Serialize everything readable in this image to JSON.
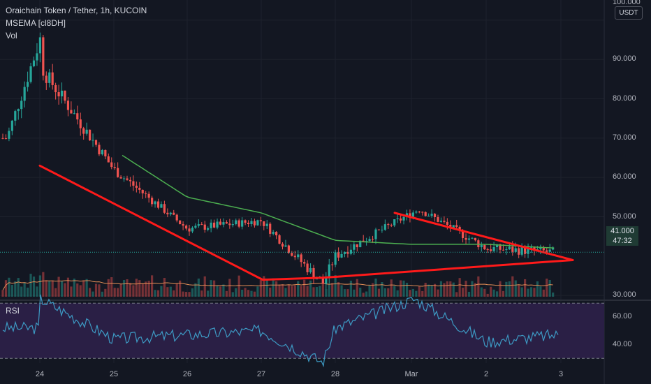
{
  "header": {
    "title": "Oraichain Token / Tether, 1h, KUCOIN",
    "indicator": "MSEMA [cl8DH]",
    "volume_label": "Vol"
  },
  "currency_button": "USDT",
  "last_price": {
    "value": "41.000",
    "countdown": "47:32"
  },
  "rsi_label": "RSI",
  "colors": {
    "background": "#131722",
    "up": "#26a69a",
    "down": "#ef5350",
    "ema": "#4caf50",
    "trendline": "#ff1a1a",
    "rsi_line": "#3d9ac4",
    "rsi_band": "#2a1f45",
    "volume_ma": "#e38e56"
  },
  "chart_data": [
    {
      "type": "candlestick",
      "title": "Oraichain Token / Tether, 1h, KUCOIN",
      "y_axis_ticks": [
        "100.000",
        "90.000",
        "80.000",
        "70.000",
        "60.000",
        "50.000",
        "30.000"
      ],
      "x_axis_ticks": [
        "24",
        "25",
        "26",
        "27",
        "28",
        "Mar",
        "2",
        "3"
      ],
      "ylim": [
        25,
        100
      ],
      "grid": true,
      "key_points": [
        {
          "label": "24 early",
          "price": 70
        },
        {
          "label": "24 spike high",
          "price": 96
        },
        {
          "label": "24 peak close",
          "price": 87
        },
        {
          "label": "25",
          "price": 62
        },
        {
          "label": "26",
          "price": 47
        },
        {
          "label": "27",
          "price": 49
        },
        {
          "label": "28 low",
          "price": 33
        },
        {
          "label": "28",
          "price": 40
        },
        {
          "label": "Mar high",
          "price": 52
        },
        {
          "label": "2",
          "price": 42
        },
        {
          "label": "last",
          "price": 41
        }
      ],
      "ema_series_name": "MSEMA [cl8DH]",
      "ema_key_points": [
        {
          "label": "25",
          "price": 67
        },
        {
          "label": "26",
          "price": 55
        },
        {
          "label": "27",
          "price": 51
        },
        {
          "label": "28",
          "price": 44
        },
        {
          "label": "Mar",
          "price": 43
        },
        {
          "label": "2",
          "price": 43
        },
        {
          "label": "last",
          "price": 42
        }
      ],
      "trendlines": [
        {
          "from": {
            "label": "24",
            "price": 63
          },
          "to": {
            "label": "27",
            "price": 34
          }
        },
        {
          "from": {
            "label": "27",
            "price": 34
          },
          "to": {
            "label": "28",
            "price": 34.5
          }
        },
        {
          "from": {
            "label": "28",
            "price": 34.5
          },
          "to": {
            "label": "3",
            "price": 39
          }
        },
        {
          "from": {
            "label": "Mar",
            "price": 51
          },
          "to": {
            "label": "3",
            "price": 39
          }
        }
      ]
    },
    {
      "type": "line",
      "title": "RSI",
      "y_axis_ticks": [
        "60.00",
        "40.00"
      ],
      "ylim": [
        20,
        80
      ],
      "band": [
        30,
        70
      ],
      "key_points": [
        {
          "label": "24",
          "rsi": 52
        },
        {
          "label": "24 peak",
          "rsi": 73
        },
        {
          "label": "25",
          "rsi": 44
        },
        {
          "label": "26",
          "rsi": 47
        },
        {
          "label": "27",
          "rsi": 50
        },
        {
          "label": "28 low",
          "rsi": 27
        },
        {
          "label": "28",
          "rsi": 52
        },
        {
          "label": "Mar peak",
          "rsi": 73
        },
        {
          "label": "2",
          "rsi": 42
        },
        {
          "label": "last",
          "rsi": 47
        }
      ]
    }
  ]
}
